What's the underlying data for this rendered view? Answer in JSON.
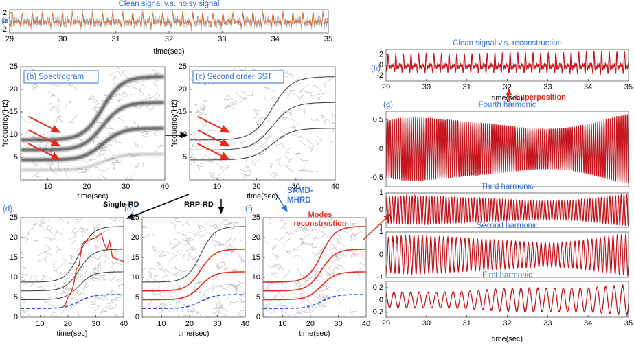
{
  "panels": [
    {
      "label": "(a)",
      "title": "Clean signal v.s. noisy signal",
      "xlabel": "time(sec)",
      "xlim": [
        29,
        35
      ],
      "ylim": [
        -2.8,
        2.8
      ],
      "xticks": [
        29,
        30,
        31,
        32,
        33,
        34,
        35
      ],
      "yticks": [
        -2,
        0,
        2
      ]
    },
    {
      "label": "(b) Spectrogram",
      "ylabel": "frequency(Hz)",
      "xlabel": "time(sec)",
      "xlim": [
        3,
        40
      ],
      "ylim": [
        0,
        25
      ],
      "xticks": [
        10,
        20,
        30,
        40
      ],
      "yticks": [
        5,
        10,
        15,
        20,
        25
      ]
    },
    {
      "label": "(c) Second order SST",
      "ylabel": "frequency(Hz)",
      "xlabel": "time(sec)",
      "xlim": [
        3,
        40
      ],
      "ylim": [
        0,
        25
      ],
      "xticks": [
        10,
        20,
        30,
        40
      ],
      "yticks": [
        5,
        10,
        15,
        20,
        25
      ]
    },
    {
      "label": "(d)",
      "xlabel": "time(sec)",
      "xlim": [
        3,
        40
      ],
      "ylim": [
        0,
        25
      ],
      "xticks": [
        10,
        20,
        30,
        40
      ],
      "yticks": [
        0,
        5,
        10,
        15,
        20,
        25
      ]
    },
    {
      "label": "(e)",
      "xlabel": "time(sec)",
      "xlim": [
        3,
        40
      ],
      "ylim": [
        0,
        25
      ],
      "xticks": [
        10,
        20,
        30,
        40
      ],
      "yticks": [
        0,
        5,
        10,
        15,
        20,
        25
      ]
    },
    {
      "label": "(f)",
      "xlabel": "time(sec)",
      "xlim": [
        3,
        40
      ],
      "ylim": [
        0,
        25
      ],
      "xticks": [
        10,
        20,
        30,
        40
      ],
      "yticks": [
        0,
        5,
        10,
        15,
        20,
        25
      ]
    },
    {
      "label": "(h)",
      "title": "Clean signal v.s. reconstruction",
      "xlabel": "time(sec)",
      "xlim": [
        29,
        35
      ],
      "ylim": [
        -3,
        3
      ],
      "xticks": [
        29,
        30,
        31,
        32,
        33,
        34,
        35
      ],
      "yticks": [
        -2,
        0,
        2
      ]
    },
    {
      "title": "Fourth harmonic",
      "xlim": [
        29,
        35
      ],
      "ylim": [
        -0.65,
        0.65
      ],
      "yticks": [
        -0.5,
        0,
        0.5
      ]
    },
    {
      "title": "Third harmonic",
      "xlim": [
        29,
        35
      ],
      "ylim": [
        -1,
        1
      ],
      "yticks": [
        -1,
        0,
        1
      ]
    },
    {
      "title": "Second harmonic",
      "xlim": [
        29,
        35
      ],
      "ylim": [
        -1,
        1
      ],
      "yticks": [
        -1,
        0,
        1
      ]
    },
    {
      "title": "First harmonic",
      "xlabel": "time(sec)",
      "xlim": [
        29,
        35
      ],
      "ylim": [
        -0.28,
        0.3
      ],
      "xticks": [
        29,
        30,
        31,
        32,
        33,
        34,
        35
      ],
      "yticks": [
        -0.2,
        0,
        0.2
      ]
    }
  ],
  "annotations": {
    "group_label": "(g)",
    "single_rd": "Single-RD",
    "rrp_rd": "RRP-RD",
    "samd": [
      "SAMD-",
      "MHRD"
    ],
    "modes": [
      "Modes",
      "reconstruction"
    ],
    "superposition": "Superposition"
  }
}
